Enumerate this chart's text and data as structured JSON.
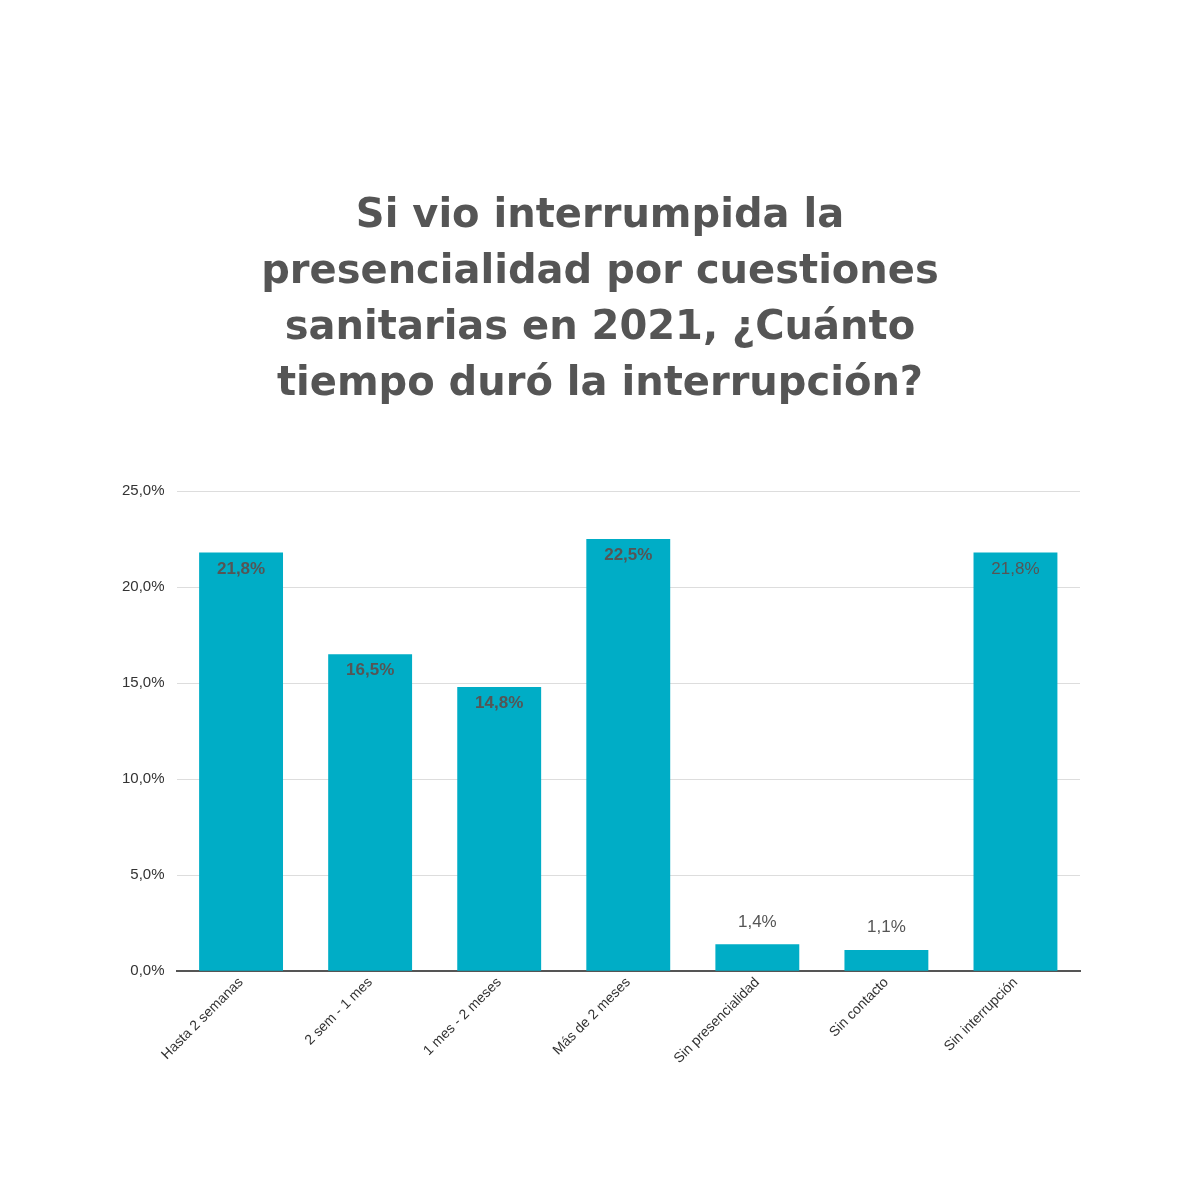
{
  "chart_data": {
    "type": "bar",
    "title": "Si vio interrumpida la presencialidad por cuestiones sanitarias en 2021, ¿Cuánto tiempo duró la interrupción?",
    "categories": [
      "Hasta 2 semanas",
      "2 sem - 1 mes",
      "1 mes - 2 meses",
      "Más de 2 meses",
      "Sin presencialidad",
      "Sin contacto",
      "Sin interrupción"
    ],
    "values": [
      21.8,
      16.5,
      14.8,
      22.5,
      1.4,
      1.1,
      21.8
    ],
    "value_labels": [
      "21,8%",
      "16,5%",
      "14,8%",
      "22,5%",
      "1,4%",
      "1,1%",
      "21,8%"
    ],
    "color": "#00adc6",
    "ylim": [
      0,
      25
    ],
    "yticks": [
      {
        "value": 0,
        "label": "0,0%"
      },
      {
        "value": 5,
        "label": "5,0%"
      },
      {
        "value": 10,
        "label": "10,0%"
      },
      {
        "value": 15,
        "label": "15,0%"
      },
      {
        "value": 20,
        "label": "20,0%"
      },
      {
        "value": 25,
        "label": "25,0%"
      }
    ],
    "grid": "y"
  }
}
